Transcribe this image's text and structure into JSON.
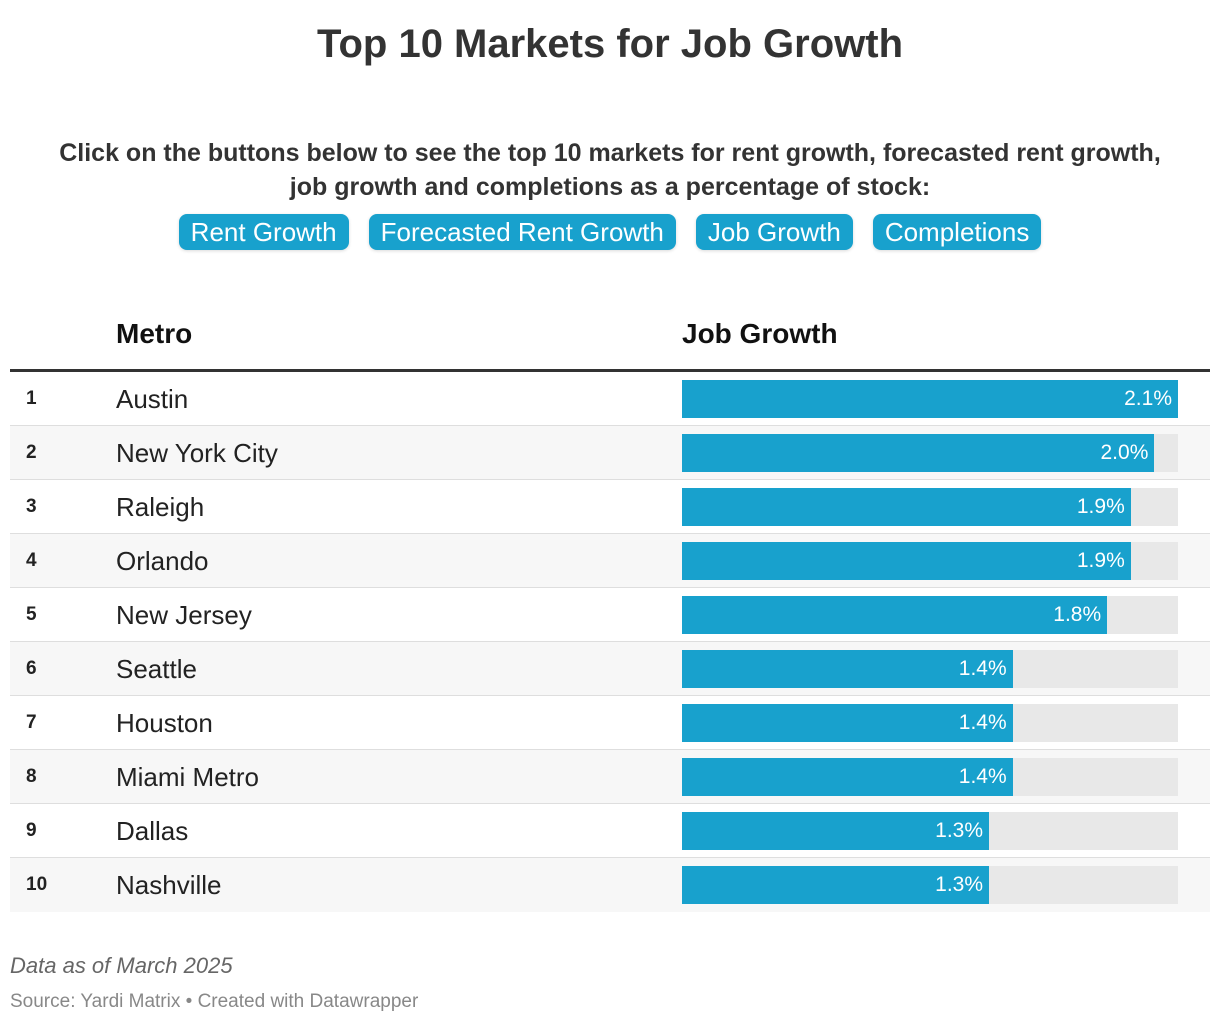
{
  "title": "Top 10 Markets for Job Growth",
  "subtitle_line1": "Click on the buttons below to see the top 10 markets for rent growth, forecasted rent growth,",
  "subtitle_line2": "job growth and completions as a percentage of stock:",
  "buttons": [
    "Rent Growth",
    "Forecasted Rent Growth",
    "Job Growth",
    "Completions"
  ],
  "colors": {
    "accent": "#18a1cd",
    "track": "#e8e8e8",
    "text": "#333333"
  },
  "chart_data": {
    "type": "table",
    "title": "Top 10 Markets for Job Growth",
    "columns": [
      "Metro",
      "Job Growth"
    ],
    "max": 2.1,
    "rows": [
      {
        "rank": "1",
        "metro": "Austin",
        "value": 2.1,
        "label": "2.1%"
      },
      {
        "rank": "2",
        "metro": "New York City",
        "value": 2.0,
        "label": "2.0%"
      },
      {
        "rank": "3",
        "metro": "Raleigh",
        "value": 1.9,
        "label": "1.9%"
      },
      {
        "rank": "4",
        "metro": "Orlando",
        "value": 1.9,
        "label": "1.9%"
      },
      {
        "rank": "5",
        "metro": "New Jersey",
        "value": 1.8,
        "label": "1.8%"
      },
      {
        "rank": "6",
        "metro": "Seattle",
        "value": 1.4,
        "label": "1.4%"
      },
      {
        "rank": "7",
        "metro": "Houston",
        "value": 1.4,
        "label": "1.4%"
      },
      {
        "rank": "8",
        "metro": "Miami Metro",
        "value": 1.4,
        "label": "1.4%"
      },
      {
        "rank": "9",
        "metro": "Dallas",
        "value": 1.3,
        "label": "1.3%"
      },
      {
        "rank": "10",
        "metro": "Nashville",
        "value": 1.3,
        "label": "1.3%"
      }
    ]
  },
  "footer": {
    "note": "Data as of March 2025",
    "source": "Source: Yardi Matrix • Created with Datawrapper"
  }
}
